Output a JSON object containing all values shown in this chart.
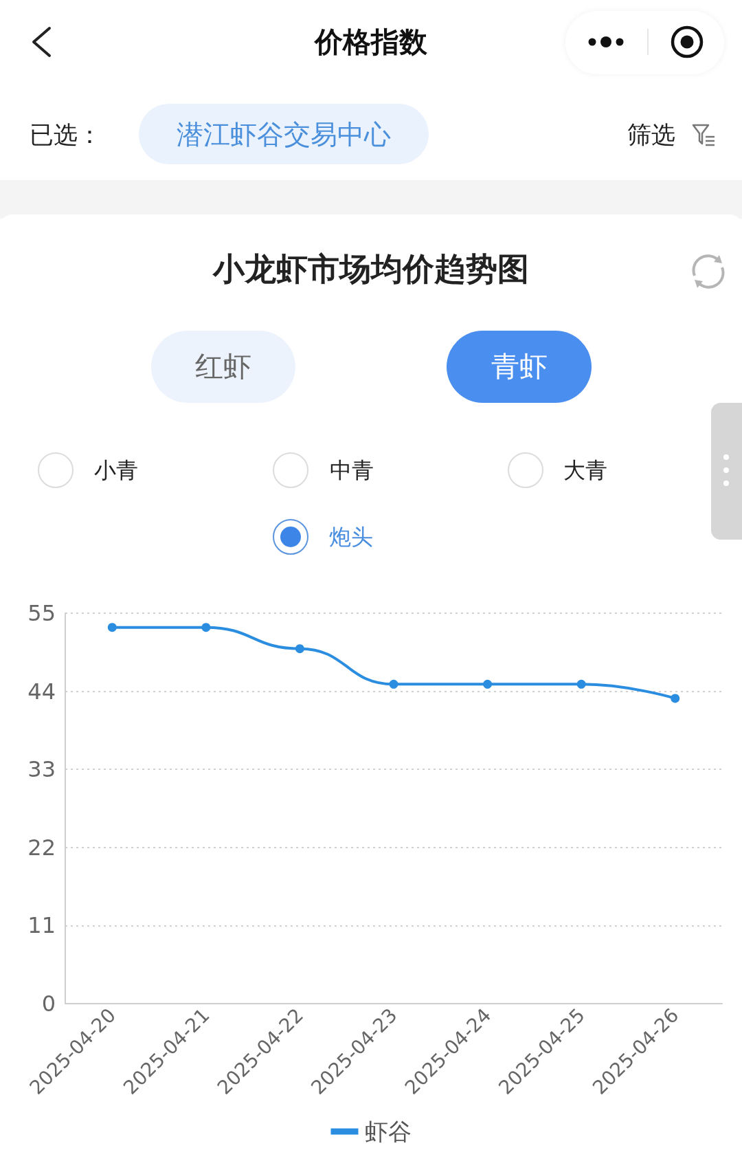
{
  "chart_data": {
    "type": "line",
    "title": "小龙虾市场均价趋势图",
    "categories": [
      "2025-04-20",
      "2025-04-21",
      "2025-04-22",
      "2025-04-23",
      "2025-04-24",
      "2025-04-25",
      "2025-04-26"
    ],
    "series": [
      {
        "name": "虾谷",
        "color": "#2b8de0",
        "values": [
          53,
          53,
          50,
          45,
          45,
          45,
          43
        ]
      }
    ],
    "ylim": [
      0,
      55
    ],
    "yticks": [
      0,
      11,
      22,
      33,
      44,
      55
    ],
    "grid": "y",
    "legend": "bottom",
    "marker": "circle",
    "line_style": "solid",
    "annotations": [
      "价格指数",
      "已选：",
      "潜江虾谷交易中心",
      "筛选",
      "红虾",
      "青虾",
      "小青",
      "中青",
      "大青",
      "炮头"
    ]
  }
}
